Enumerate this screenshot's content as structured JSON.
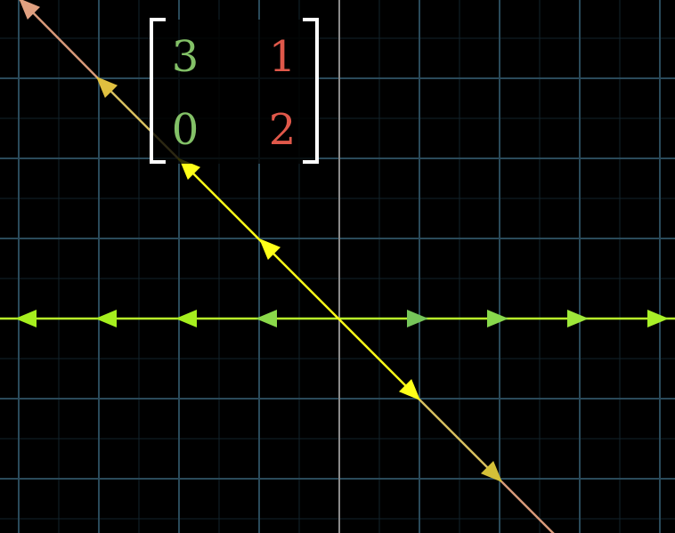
{
  "matrix": {
    "entries": [
      [
        "3",
        "1"
      ],
      [
        "0",
        "2"
      ]
    ],
    "column_colors": [
      "#83c167",
      "#e0584a"
    ]
  },
  "colors": {
    "background": "#000000",
    "grid_major": "#2a4a5a",
    "grid_minor": "#12232c",
    "axis": "#8a8a8a",
    "horizontal_eigen_line": "#b8f52a",
    "diagonal_eigen_line": "#ffff19",
    "diagonal_line_far": "#d89a7a"
  },
  "eigenvector_lines": [
    {
      "name": "horizontal",
      "direction": [
        1,
        0
      ],
      "eigenvalue": 3,
      "arrow_steps": [
        -4,
        -3,
        -2,
        -1,
        1,
        2,
        3,
        4
      ]
    },
    {
      "name": "diagonal",
      "direction": [
        -1,
        1
      ],
      "eigenvalue": 2,
      "arrow_steps": [
        -2,
        -1,
        1,
        2,
        4
      ]
    }
  ]
}
